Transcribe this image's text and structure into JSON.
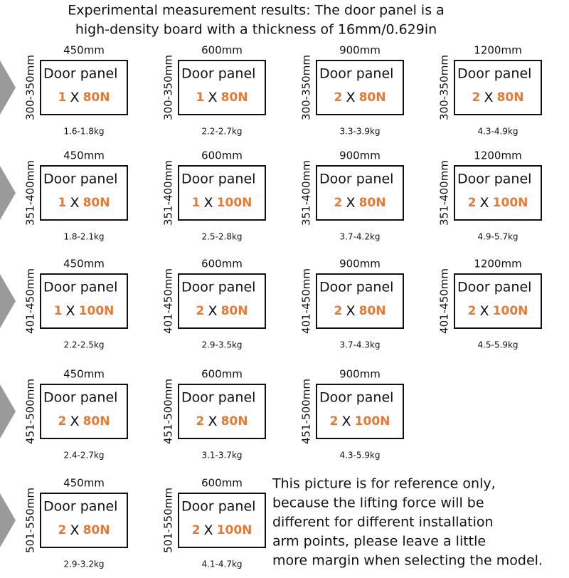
{
  "title": [
    "Experimental measurement results: The door panel is a",
    "high-density board with a thickness of 16mm/0.629in"
  ],
  "panel_label": "Door panel",
  "times": "X",
  "rows": [
    {
      "height": "300-350mm",
      "cells": [
        {
          "width": "450mm",
          "count": "1",
          "force": "80N",
          "weight": "1.6-1.8kg"
        },
        {
          "width": "600mm",
          "count": "1",
          "force": "80N",
          "weight": "2.2-2.7kg"
        },
        {
          "width": "900mm",
          "count": "2",
          "force": "80N",
          "weight": "3.3-3.9kg"
        },
        {
          "width": "1200mm",
          "count": "2",
          "force": "80N",
          "weight": "4.3-4.9kg"
        }
      ]
    },
    {
      "height": "351-400mm",
      "cells": [
        {
          "width": "450mm",
          "count": "1",
          "force": "80N",
          "weight": "1.8-2.1kg"
        },
        {
          "width": "600mm",
          "count": "1",
          "force": "100N",
          "weight": "2.5-2.8kg"
        },
        {
          "width": "900mm",
          "count": "2",
          "force": "80N",
          "weight": "3.7-4.2kg"
        },
        {
          "width": "1200mm",
          "count": "2",
          "force": "100N",
          "weight": "4.9-5.7kg"
        }
      ]
    },
    {
      "height": "401-450mm",
      "cells": [
        {
          "width": "450mm",
          "count": "1",
          "force": "100N",
          "weight": "2.2-2.5kg"
        },
        {
          "width": "600mm",
          "count": "2",
          "force": "80N",
          "weight": "2.9-3.5kg"
        },
        {
          "width": "900mm",
          "count": "2",
          "force": "80N",
          "weight": "3.7-4.3kg"
        },
        {
          "width": "1200mm",
          "count": "2",
          "force": "100N",
          "weight": "4.5-5.9kg"
        }
      ]
    },
    {
      "height": "451-500mm",
      "cells": [
        {
          "width": "450mm",
          "count": "2",
          "force": "80N",
          "weight": "2.4-2.7kg"
        },
        {
          "width": "600mm",
          "count": "2",
          "force": "80N",
          "weight": "3.1-3.7kg"
        },
        {
          "width": "900mm",
          "count": "2",
          "force": "100N",
          "weight": "4.3-5.9kg"
        }
      ]
    },
    {
      "height": "501-550mm",
      "cells": [
        {
          "width": "450mm",
          "count": "2",
          "force": "80N",
          "weight": "2.9-3.2kg"
        },
        {
          "width": "600mm",
          "count": "2",
          "force": "100N",
          "weight": "4.1-4.7kg"
        }
      ]
    }
  ],
  "note": [
    "This picture is for reference only,",
    "because the lifting force will be",
    "different for different installation",
    "arm points, please leave a little",
    "more margin when selecting the model."
  ]
}
